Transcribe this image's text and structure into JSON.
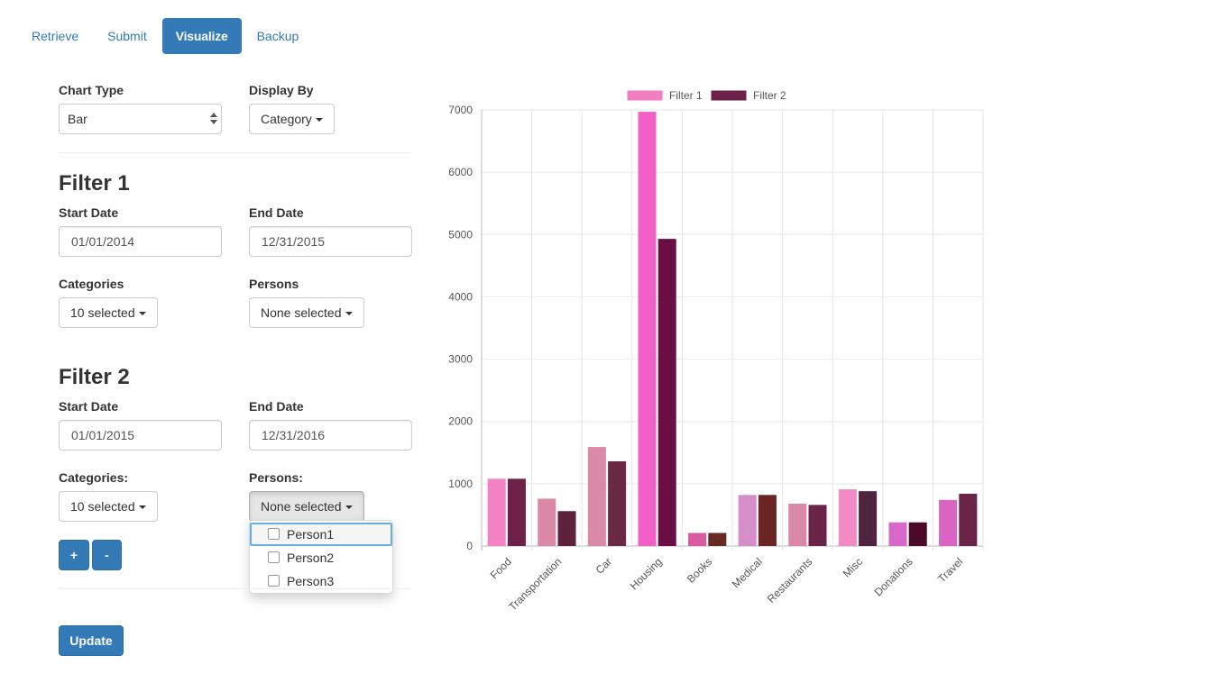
{
  "nav": {
    "tabs": [
      {
        "label": "Retrieve"
      },
      {
        "label": "Submit"
      },
      {
        "label": "Visualize",
        "active": true
      },
      {
        "label": "Backup"
      }
    ]
  },
  "controls": {
    "chart_type_label": "Chart Type",
    "chart_type_value": "Bar",
    "display_by_label": "Display By",
    "display_by_value": "Category"
  },
  "filter1": {
    "title": "Filter 1",
    "start_label": "Start Date",
    "start_value": "01/01/2014",
    "end_label": "End Date",
    "end_value": "12/31/2015",
    "categories_label": "Categories",
    "categories_value": "10 selected",
    "persons_label": "Persons",
    "persons_value": "None selected"
  },
  "filter2": {
    "title": "Filter 2",
    "start_label": "Start Date",
    "start_value": "01/01/2015",
    "end_label": "End Date",
    "end_value": "12/31/2016",
    "categories_label": "Categories:",
    "categories_value": "10 selected",
    "persons_label": "Persons:",
    "persons_value": "None selected",
    "persons_options": [
      "Person1",
      "Person2",
      "Person3"
    ]
  },
  "buttons": {
    "add_label": "+",
    "remove_label": "-",
    "update_label": "Update"
  },
  "colors": {
    "primary": "#337ab7",
    "filter1_legend": "#f27ec2",
    "filter2_legend": "#6b2148"
  },
  "chart_data": {
    "type": "bar",
    "categories": [
      "Food",
      "Transportation",
      "Car",
      "Housing",
      "Books",
      "Medical",
      "Restaurants",
      "Misc",
      "Donations",
      "Travel"
    ],
    "series": [
      {
        "name": "Filter 1",
        "values": [
          1080,
          760,
          1590,
          6970,
          210,
          820,
          680,
          910,
          380,
          740
        ],
        "colors": [
          "#f282c4",
          "#d989a6",
          "#da8aa6",
          "#f260c6",
          "#da5aa0",
          "#d58ec8",
          "#da88a8",
          "#f28ac6",
          "#d868c8",
          "#d864c4"
        ]
      },
      {
        "name": "Filter 2",
        "values": [
          1080,
          560,
          1360,
          4930,
          210,
          820,
          660,
          880,
          380,
          840
        ],
        "colors": [
          "#6d2148",
          "#5e213c",
          "#6b2a44",
          "#6a0f46",
          "#6a2a24",
          "#6a2424",
          "#6a2448",
          "#4e2440",
          "#4a0a28",
          "#6a2448"
        ]
      }
    ],
    "ylim": [
      0,
      7000
    ],
    "yticks": [
      0,
      1000,
      2000,
      3000,
      4000,
      5000,
      6000,
      7000
    ],
    "grid": true,
    "legend": "top"
  }
}
